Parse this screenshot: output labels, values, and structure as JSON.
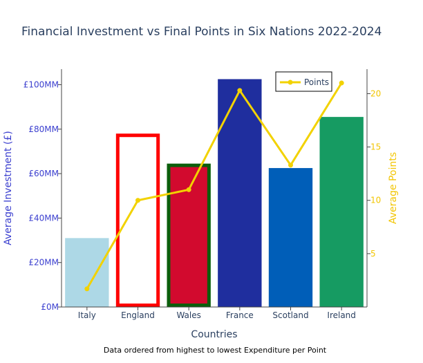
{
  "chart_data": {
    "type": "bar",
    "title": "Financial Investment vs Final Points in Six Nations 2022-2024",
    "xlabel": "Countries",
    "ylabel": "Average Investment (£)",
    "y2label": "Average Points",
    "note": "Data ordered from highest to lowest Expenditure per Point",
    "categories": [
      "Italy",
      "England",
      "Wales",
      "France",
      "Scotland",
      "Ireland"
    ],
    "ylim": [
      0,
      107
    ],
    "y2lim": [
      0,
      22.3
    ],
    "yticks": [
      0,
      20,
      40,
      60,
      80,
      100
    ],
    "yticklabels": [
      "£0M",
      "£20MM",
      "£40MM",
      "£60MM",
      "£80MM",
      "£100MM"
    ],
    "y2ticks": [
      5,
      10,
      15,
      20
    ],
    "y2ticklabels": [
      "5",
      "10",
      "15",
      "20"
    ],
    "series": [
      {
        "type": "bar",
        "values": [
          31,
          78,
          64.5,
          102.5,
          62.5,
          85.5
        ],
        "fill_colors": [
          "#add8e6",
          "#ffffff",
          "#d20a2e",
          "#1f2e9e",
          "#005eb8",
          "#169b62"
        ],
        "outline_colors": [
          "none",
          "#ff0000",
          "#0b5e0b",
          "none",
          "none",
          "none"
        ]
      },
      {
        "type": "line",
        "name": "Points",
        "axis": "right",
        "values": [
          1.7,
          10,
          11,
          20.3,
          13.3,
          21
        ],
        "color": "#f2d200"
      }
    ],
    "legend": {
      "position": "top-right",
      "entries": [
        "Points"
      ]
    },
    "grid": false
  }
}
